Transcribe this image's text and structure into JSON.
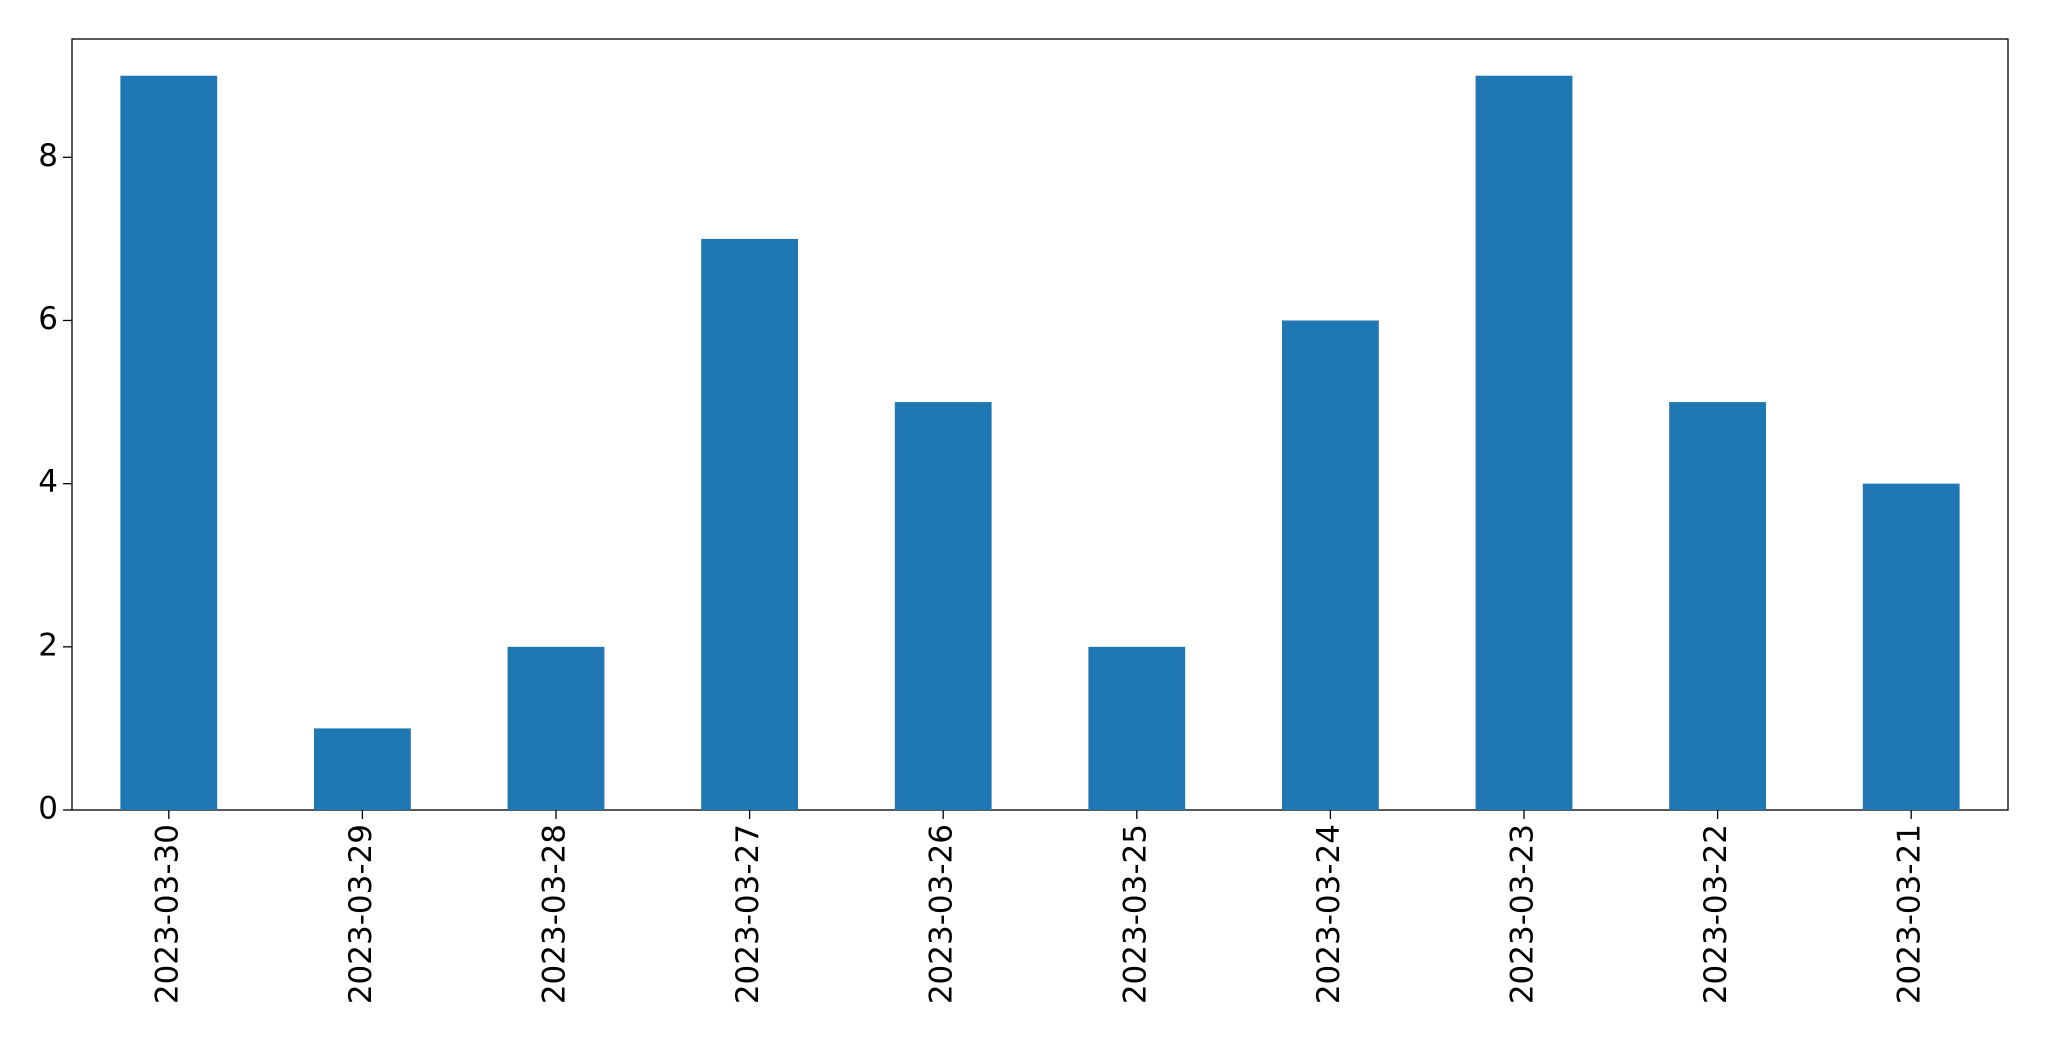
{
  "chart_data": {
    "type": "bar",
    "categories": [
      "2023-03-30",
      "2023-03-29",
      "2023-03-28",
      "2023-03-27",
      "2023-03-26",
      "2023-03-25",
      "2023-03-24",
      "2023-03-23",
      "2023-03-22",
      "2023-03-21"
    ],
    "values": [
      9,
      1,
      2,
      7,
      5,
      2,
      6,
      9,
      5,
      4
    ],
    "color": "#1f77b4",
    "ylim": [
      0,
      9.45
    ],
    "yticks": [
      0,
      2,
      4,
      6,
      8
    ],
    "grid": false
  }
}
